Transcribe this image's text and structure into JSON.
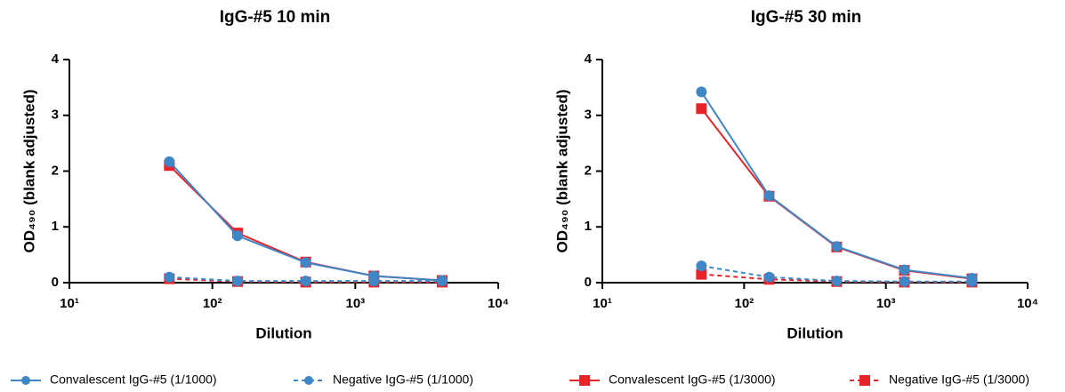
{
  "chart_data": [
    {
      "type": "line",
      "title": "IgG-#5 10 min",
      "x_label": "Dilution",
      "y_label": "OD₄₉₀ (blank adjusted)",
      "xscale": "log",
      "xlim": [
        10,
        10000
      ],
      "xticks": [
        {
          "value": 10,
          "label": "10¹"
        },
        {
          "value": 100,
          "label": "10²"
        },
        {
          "value": 1000,
          "label": "10³"
        },
        {
          "value": 10000,
          "label": "10⁴"
        }
      ],
      "ylim": [
        0,
        4
      ],
      "yticks": [
        0,
        1,
        2,
        3,
        4
      ],
      "x": [
        50,
        150,
        450,
        1350,
        4050
      ],
      "series": [
        {
          "name": "Convalescent IgG-#5 (1/1000)",
          "color": "#3f86c6",
          "marker": "circle",
          "dashed": false,
          "values": [
            2.17,
            0.84,
            0.36,
            0.12,
            0.04
          ]
        },
        {
          "name": "Negative IgG-#5 (1/1000)",
          "color": "#3f86c6",
          "marker": "circle",
          "dashed": true,
          "values": [
            0.1,
            0.03,
            0.03,
            0.03,
            0.03
          ]
        },
        {
          "name": "Convalescent IgG-#5 (1/3000)",
          "color": "#e8242a",
          "marker": "square",
          "dashed": false,
          "values": [
            2.1,
            0.89,
            0.37,
            0.12,
            0.04
          ]
        },
        {
          "name": "Negative IgG-#5 (1/3000)",
          "color": "#e8242a",
          "marker": "square",
          "dashed": true,
          "values": [
            0.07,
            0.02,
            0.01,
            0.01,
            0.01
          ]
        }
      ]
    },
    {
      "type": "line",
      "title": "IgG-#5 30 min",
      "x_label": "Dilution",
      "y_label": "OD₄₉₀ (blank adjusted)",
      "xscale": "log",
      "xlim": [
        10,
        10000
      ],
      "xticks": [
        {
          "value": 10,
          "label": "10¹"
        },
        {
          "value": 100,
          "label": "10²"
        },
        {
          "value": 1000,
          "label": "10³"
        },
        {
          "value": 10000,
          "label": "10⁴"
        }
      ],
      "ylim": [
        0,
        4
      ],
      "yticks": [
        0,
        1,
        2,
        3,
        4
      ],
      "x": [
        50,
        150,
        450,
        1350,
        4050
      ],
      "series": [
        {
          "name": "Convalescent IgG-#5 (1/1000)",
          "color": "#3f86c6",
          "marker": "circle",
          "dashed": false,
          "values": [
            3.42,
            1.56,
            0.65,
            0.23,
            0.08
          ]
        },
        {
          "name": "Negative IgG-#5 (1/1000)",
          "color": "#3f86c6",
          "marker": "circle",
          "dashed": true,
          "values": [
            0.3,
            0.1,
            0.03,
            0.02,
            0.02
          ]
        },
        {
          "name": "Convalescent IgG-#5 (1/3000)",
          "color": "#e8242a",
          "marker": "square",
          "dashed": false,
          "values": [
            3.12,
            1.55,
            0.64,
            0.22,
            0.07
          ]
        },
        {
          "name": "Negative IgG-#5 (1/3000)",
          "color": "#e8242a",
          "marker": "square",
          "dashed": true,
          "values": [
            0.15,
            0.06,
            0.02,
            0.01,
            0.01
          ]
        }
      ]
    }
  ]
}
